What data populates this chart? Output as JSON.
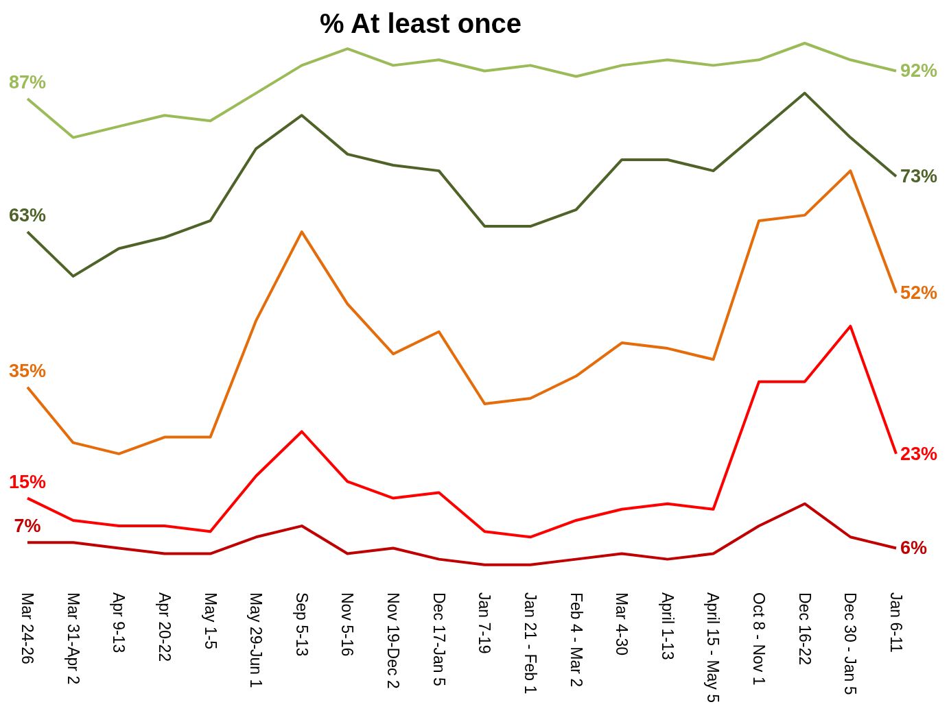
{
  "chart_data": {
    "type": "line",
    "title": "% At least once",
    "categories": [
      "Mar 24-26",
      "Mar 31-Apr 2",
      "Apr 9-13",
      "Apr 20-22",
      "May 1-5",
      "May 29-Jun 1",
      "Sep 5-13",
      "Nov 5-16",
      "Nov 19-Dec 2",
      "Dec 17-Jan 5",
      "Jan 7-19",
      "Jan 21 - Feb 1",
      "Feb 4 - Mar 2",
      "Mar 4-30",
      "April 1-13",
      "April 15 - May 5",
      "Oct 8 - Nov 1",
      "Dec 16-22",
      "Dec 30 - Jan 5",
      "Jan 6-11"
    ],
    "legend": false,
    "grid": false,
    "marker": "none",
    "line_style": "solid",
    "series": [
      {
        "color": "#9bbb59",
        "values": [
          87,
          80,
          82,
          84,
          83,
          88,
          93,
          96,
          93,
          94,
          92,
          93,
          91,
          93,
          94,
          93,
          94,
          97,
          94,
          92
        ],
        "value_labels": [
          "87%",
          null,
          null,
          null,
          null,
          null,
          null,
          null,
          null,
          null,
          null,
          null,
          null,
          null,
          null,
          null,
          null,
          null,
          null,
          "92%"
        ]
      },
      {
        "color": "#4f6228",
        "values": [
          63,
          55,
          60,
          62,
          65,
          78,
          84,
          77,
          75,
          74,
          64,
          64,
          67,
          76,
          76,
          74,
          81,
          88,
          80,
          73
        ],
        "value_labels": [
          "63%",
          null,
          null,
          null,
          null,
          null,
          null,
          null,
          null,
          null,
          null,
          null,
          null,
          null,
          null,
          null,
          null,
          null,
          null,
          "73%"
        ]
      },
      {
        "color": "#e46c0a",
        "values": [
          35,
          25,
          23,
          26,
          26,
          47,
          63,
          50,
          41,
          45,
          32,
          33,
          37,
          43,
          42,
          40,
          65,
          66,
          74,
          52
        ],
        "value_labels": [
          "35%",
          null,
          null,
          null,
          null,
          null,
          null,
          null,
          null,
          null,
          null,
          null,
          null,
          null,
          null,
          null,
          null,
          null,
          null,
          "52%"
        ]
      },
      {
        "color": "#ff0000",
        "values": [
          15,
          11,
          10,
          10,
          9,
          19,
          27,
          18,
          15,
          16,
          9,
          8,
          11,
          13,
          14,
          13,
          36,
          36,
          46,
          23
        ],
        "value_labels": [
          "15%",
          null,
          null,
          null,
          null,
          null,
          null,
          null,
          null,
          null,
          null,
          null,
          null,
          null,
          null,
          null,
          null,
          null,
          null,
          "23%"
        ]
      },
      {
        "color": "#c00000",
        "values": [
          7,
          7,
          6,
          5,
          5,
          8,
          10,
          5,
          6,
          4,
          3,
          3,
          4,
          5,
          4,
          5,
          10,
          14,
          8,
          6
        ],
        "value_labels": [
          "7%",
          null,
          null,
          null,
          null,
          null,
          null,
          null,
          null,
          null,
          null,
          null,
          null,
          null,
          null,
          null,
          null,
          null,
          null,
          "6%"
        ]
      }
    ]
  }
}
